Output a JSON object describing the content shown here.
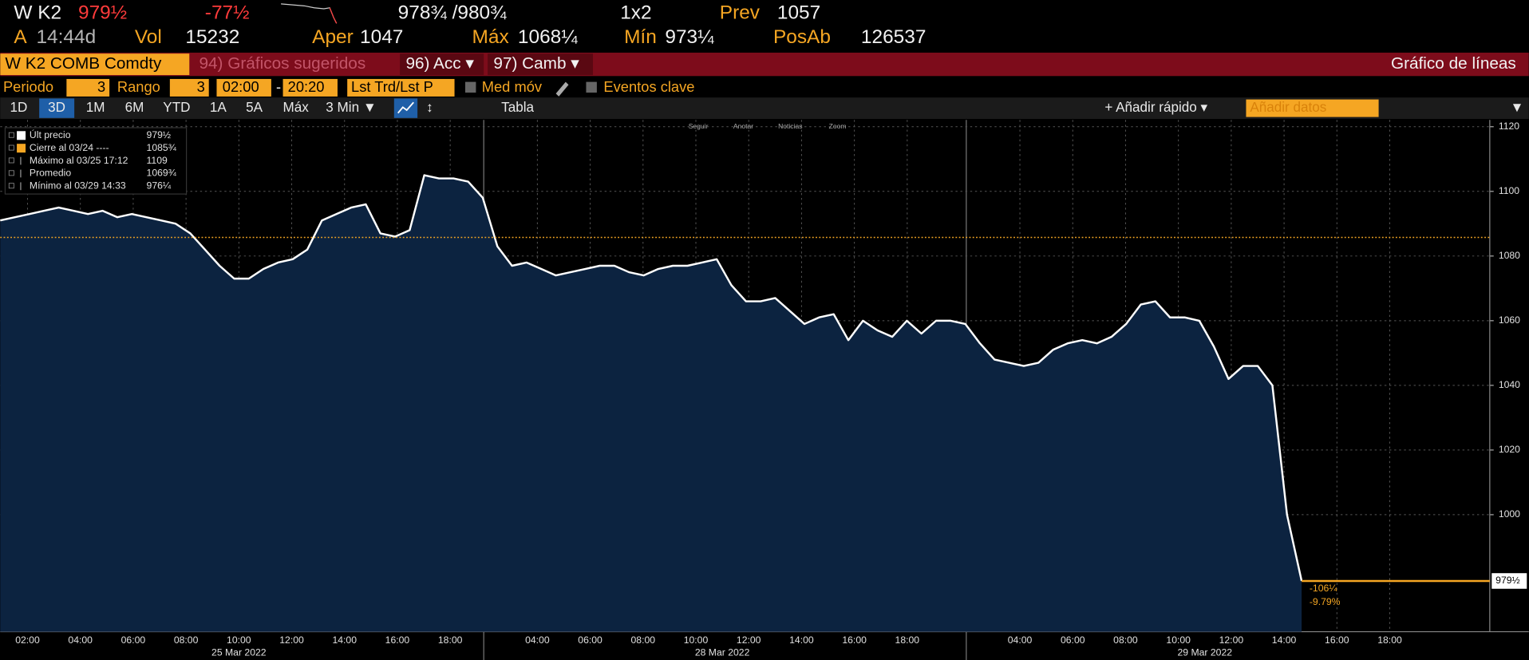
{
  "header": {
    "ticker": "W K2",
    "last": "979½",
    "change": "-77½",
    "bid_ask": "978¾ /980¾",
    "size": "1x2",
    "prev_label": "Prev",
    "prev": "1057",
    "a_label": "A",
    "time": "14:44d",
    "vol_label": "Vol",
    "vol": "15232",
    "open_label": "Aper",
    "open": "1047",
    "high_label": "Máx",
    "high": "1068¼",
    "low_label": "Mín",
    "low": "973¼",
    "oi_label": "PosAb",
    "oi": "126537"
  },
  "toolbar": {
    "security": "W K2 COMB Comdty",
    "suggested": "94) Gráficos sugeridos",
    "actions": "96) Acc ▾",
    "change": "97) Camb ▾",
    "chart_type": "Gráfico de líneas"
  },
  "settings": {
    "period_label": "Periodo",
    "period": "3",
    "range_label": "Rango",
    "range": "3",
    "start": "02:00",
    "dash": "-",
    "end": "20:20",
    "field": "Lst Trd/Lst P",
    "moving_avg": "Med móv",
    "key_events": "Eventos clave"
  },
  "range_buttons": [
    "1D",
    "3D",
    "1M",
    "6M",
    "YTD",
    "1A",
    "5A",
    "Máx",
    "3 Min ▼"
  ],
  "tools_right": {
    "table": "Tabla",
    "quick_add": "+ Añadir rápido ▾",
    "add_data": "Añadir datos",
    "menu": "▼"
  },
  "chart_tools": [
    "Seguir",
    "Anotar",
    "Noticias",
    "Zoom"
  ],
  "legend": [
    {
      "label": "Últ precio",
      "value": "979½"
    },
    {
      "label": "Cierre al 03/24 ----",
      "value": "1085¾"
    },
    {
      "label": "Máximo al 03/25 17:12",
      "value": "1109"
    },
    {
      "label": "Promedio",
      "value": "1069¾"
    },
    {
      "label": "Mínimo al 03/29 14:33",
      "value": "976¼"
    }
  ],
  "chart_data": {
    "type": "line",
    "series": [
      {
        "name": "Últ precio",
        "color": "#ffffff",
        "area_color": "#0c2340",
        "values": [
          1091,
          1092,
          1093,
          1094,
          1095,
          1094,
          1093,
          1094,
          1092,
          1093,
          1092,
          1091,
          1090,
          1087,
          1082,
          1077,
          1073,
          1073,
          1076,
          1078,
          1079,
          1082,
          1091,
          1093,
          1095,
          1096,
          1087,
          1086,
          1088,
          1105,
          1104,
          1104,
          1103,
          1098,
          1083,
          1077,
          1078,
          1076,
          1074,
          1075,
          1076,
          1077,
          1077,
          1075,
          1074,
          1076,
          1077,
          1077,
          1078,
          1079,
          1071,
          1066,
          1066,
          1067,
          1063,
          1059,
          1061,
          1062,
          1054,
          1060,
          1057,
          1055,
          1060,
          1056,
          1060,
          1060,
          1059,
          1053,
          1048,
          1047,
          1046,
          1047,
          1051,
          1053,
          1054,
          1053,
          1055,
          1059,
          1065,
          1066,
          1061,
          1061,
          1060,
          1052,
          1042,
          1046,
          1046,
          1040,
          1000,
          979.5
        ]
      }
    ],
    "reference_line": {
      "value": 1085.75,
      "color": "#f5a623"
    },
    "last_price": {
      "value": 979.5,
      "label": "979½",
      "color": "#f5a623"
    },
    "annotations": [
      "-106¼",
      "-9.79%"
    ],
    "ylim": [
      963.8,
      1122.1
    ],
    "yticks": [
      1000,
      1020,
      1040,
      1060,
      1080,
      1100,
      1120
    ],
    "grid": true,
    "sessions": [
      {
        "date": "25 Mar 2022",
        "ticks": [
          "02:00",
          "04:00",
          "06:00",
          "08:00",
          "10:00",
          "12:00",
          "14:00",
          "16:00",
          "18:00"
        ]
      },
      {
        "date": "28 Mar 2022",
        "ticks": [
          "04:00",
          "06:00",
          "08:00",
          "10:00",
          "12:00",
          "14:00",
          "16:00",
          "18:00"
        ]
      },
      {
        "date": "29 Mar 2022",
        "ticks": [
          "04:00",
          "06:00",
          "08:00",
          "10:00",
          "12:00",
          "14:00",
          "16:00",
          "18:00"
        ]
      }
    ]
  }
}
